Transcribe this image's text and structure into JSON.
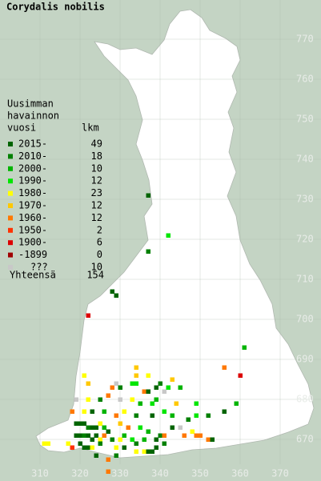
{
  "title": "Corydalis nobilis",
  "legend": {
    "heading": [
      "Uusimman",
      "havainnon",
      "vuosi"
    ],
    "count_heading": "lkm",
    "entries": [
      {
        "label": "2015-",
        "count": 49,
        "color": "#006400"
      },
      {
        "label": "2010-",
        "count": 18,
        "color": "#008000"
      },
      {
        "label": "2000-",
        "count": 10,
        "color": "#00b400"
      },
      {
        "label": "1990-",
        "count": 12,
        "color": "#00e600"
      },
      {
        "label": "1980-",
        "count": 23,
        "color": "#ffff00"
      },
      {
        "label": "1970-",
        "count": 12,
        "color": "#ffc800"
      },
      {
        "label": "1960-",
        "count": 12,
        "color": "#ff7800"
      },
      {
        "label": "1950-",
        "count": 2,
        "color": "#ff3200"
      },
      {
        "label": "1900-",
        "count": 6,
        "color": "#dc0000"
      },
      {
        "label": "-1899",
        "count": 0,
        "color": "#a00000"
      },
      {
        "label": "???",
        "count": 10,
        "color": "#c8c8c8"
      }
    ],
    "total_label": "Yhteensä",
    "total": 154
  },
  "grid": {
    "x_ticks": [
      310,
      320,
      330,
      340,
      350,
      360,
      370
    ],
    "y_ticks": [
      670,
      680,
      690,
      700,
      710,
      720,
      730,
      740,
      750,
      760,
      770
    ]
  },
  "squares": [
    [
      337,
      731,
      0
    ],
    [
      342,
      721,
      3
    ],
    [
      337,
      717,
      1
    ],
    [
      328,
      707,
      0
    ],
    [
      329,
      706,
      0
    ],
    [
      322,
      701,
      8
    ],
    [
      361,
      693,
      2
    ],
    [
      360,
      686,
      8
    ],
    [
      356,
      688,
      6
    ],
    [
      359,
      679,
      2
    ],
    [
      356,
      677,
      0
    ],
    [
      352,
      676,
      1
    ],
    [
      321,
      686,
      4
    ],
    [
      322,
      684,
      5
    ],
    [
      328,
      683,
      6
    ],
    [
      329,
      684,
      10
    ],
    [
      330,
      683,
      1
    ],
    [
      333,
      684,
      3
    ],
    [
      334,
      684,
      3
    ],
    [
      334,
      686,
      5
    ],
    [
      334,
      688,
      5
    ],
    [
      336,
      682,
      6
    ],
    [
      337,
      682,
      0
    ],
    [
      339,
      683,
      0
    ],
    [
      340,
      684,
      1
    ],
    [
      341,
      682,
      10
    ],
    [
      343,
      685,
      5
    ],
    [
      342,
      683,
      3
    ],
    [
      345,
      683,
      2
    ],
    [
      337,
      686,
      4
    ],
    [
      319,
      680,
      10
    ],
    [
      322,
      680,
      4
    ],
    [
      325,
      680,
      1
    ],
    [
      327,
      681,
      6
    ],
    [
      330,
      680,
      10
    ],
    [
      333,
      680,
      4
    ],
    [
      335,
      679,
      2
    ],
    [
      338,
      679,
      3
    ],
    [
      339,
      680,
      2
    ],
    [
      344,
      679,
      5
    ],
    [
      349,
      679,
      3
    ],
    [
      318,
      677,
      6
    ],
    [
      321,
      677,
      4
    ],
    [
      323,
      677,
      0
    ],
    [
      326,
      677,
      2
    ],
    [
      329,
      676,
      6
    ],
    [
      331,
      677,
      4
    ],
    [
      334,
      676,
      1
    ],
    [
      338,
      676,
      0
    ],
    [
      341,
      677,
      3
    ],
    [
      343,
      676,
      2
    ],
    [
      347,
      675,
      1
    ],
    [
      349,
      676,
      3
    ],
    [
      319,
      674,
      0
    ],
    [
      320,
      674,
      0
    ],
    [
      321,
      674,
      0
    ],
    [
      322,
      673,
      1
    ],
    [
      323,
      673,
      0
    ],
    [
      324,
      673,
      0
    ],
    [
      325,
      674,
      4
    ],
    [
      326,
      673,
      2
    ],
    [
      327,
      672,
      0
    ],
    [
      330,
      674,
      5
    ],
    [
      332,
      673,
      6
    ],
    [
      335,
      673,
      3
    ],
    [
      337,
      672,
      2
    ],
    [
      340,
      671,
      1
    ],
    [
      343,
      673,
      0
    ],
    [
      345,
      673,
      10
    ],
    [
      348,
      672,
      4
    ],
    [
      319,
      671,
      0
    ],
    [
      320,
      671,
      0
    ],
    [
      321,
      671,
      1
    ],
    [
      322,
      671,
      0
    ],
    [
      323,
      670,
      0
    ],
    [
      324,
      671,
      0
    ],
    [
      325,
      670,
      4
    ],
    [
      326,
      671,
      6
    ],
    [
      328,
      670,
      1
    ],
    [
      330,
      670,
      4
    ],
    [
      331,
      671,
      2
    ],
    [
      333,
      670,
      3
    ],
    [
      334,
      669,
      1
    ],
    [
      336,
      670,
      2
    ],
    [
      339,
      670,
      0
    ],
    [
      341,
      671,
      6
    ],
    [
      346,
      671,
      6
    ],
    [
      349,
      671,
      6
    ],
    [
      350,
      671,
      6
    ],
    [
      352,
      670,
      6
    ],
    [
      353,
      670,
      0
    ],
    [
      320,
      669,
      0
    ],
    [
      321,
      668,
      0
    ],
    [
      322,
      668,
      0
    ],
    [
      323,
      668,
      4
    ],
    [
      325,
      669,
      1
    ],
    [
      329,
      668,
      4
    ],
    [
      331,
      668,
      0
    ],
    [
      334,
      667,
      4
    ],
    [
      336,
      667,
      4
    ],
    [
      337,
      667,
      0
    ],
    [
      338,
      667,
      0
    ],
    [
      339,
      668,
      0
    ],
    [
      341,
      669,
      1
    ],
    [
      312,
      669,
      4
    ],
    [
      311,
      669,
      4
    ],
    [
      318,
      668,
      7
    ],
    [
      329,
      666,
      1
    ],
    [
      327,
      665,
      6
    ],
    [
      327,
      662,
      6
    ],
    [
      317,
      669,
      4
    ],
    [
      324,
      666,
      0
    ]
  ]
}
